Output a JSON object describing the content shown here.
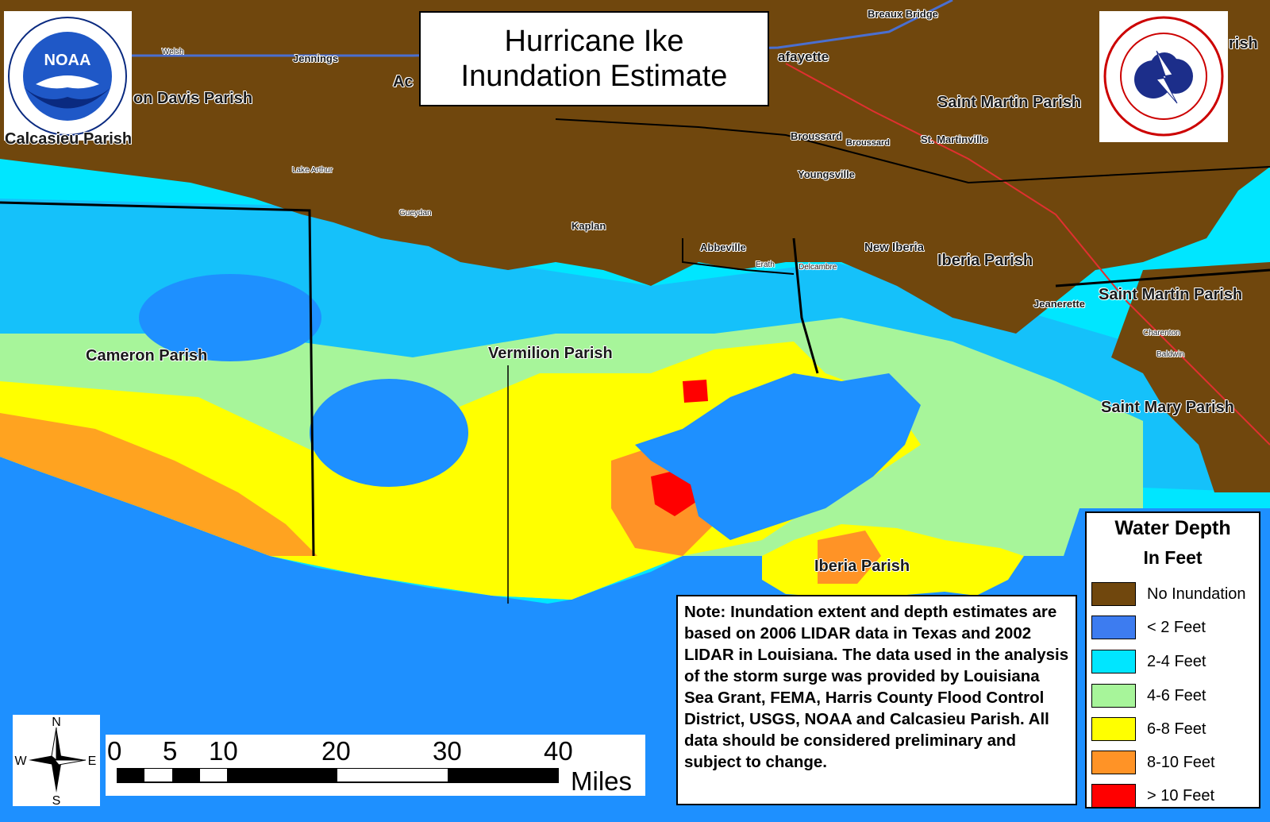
{
  "title": {
    "line1": "Hurricane Ike",
    "line2": "Inundation Estimate"
  },
  "logos": {
    "left": "NOAA",
    "right": "National Weather Service"
  },
  "places": {
    "parishes": [
      "Cameron Parish",
      "Vermilion Parish",
      "Iberia Parish",
      "Saint Martin Parish",
      "Saint Mary Parish",
      "Calcasieu Parish",
      "Jefferson Davis Parish",
      "Iberia Parish",
      "Saint Martin Parish",
      "rish"
    ],
    "towns": [
      "Lafayette",
      "Breaux Bridge",
      "Broussard",
      "St. Martinville",
      "Youngsville",
      "Kaplan",
      "Abbeville",
      "New Iberia",
      "Jeanerette",
      "Jennings",
      "Lake Arthur",
      "Gueydan",
      "Erath",
      "Delcambre",
      "Charenton",
      "Baldwin",
      "Welsh",
      "Broussard"
    ]
  },
  "note": "Note: Inundation extent and depth estimates  are based on 2006 LIDAR data in Texas and 2002 LIDAR in Louisiana. The data used in the analysis of the storm surge was provided by Louisiana Sea Grant, FEMA, Harris County Flood Control District, USGS, NOAA and Calcasieu Parish. All data should be considered preliminary and subject to change.",
  "legend": {
    "title": "Water Depth",
    "subtitle": "In Feet",
    "items": [
      {
        "label": "No Inundation",
        "color": "#70470d"
      },
      {
        "label": "< 2 Feet",
        "color": "#3d7cf0"
      },
      {
        "label": "2-4 Feet",
        "color": "#00e6ff"
      },
      {
        "label": "4-6 Feet",
        "color": "#a7f59a"
      },
      {
        "label": "6-8 Feet",
        "color": "#ffff00"
      },
      {
        "label": "8-10 Feet",
        "color": "#ff9326"
      },
      {
        "label": "> 10 Feet",
        "color": "#ff0000"
      }
    ]
  },
  "compass": {
    "n": "N",
    "s": "S",
    "e": "E",
    "w": "W"
  },
  "scale": {
    "ticks": [
      "0",
      "5",
      "10",
      "20",
      "30",
      "40"
    ],
    "unit": "Miles"
  },
  "colors": {
    "water": "#1e90ff",
    "land": "#70470d"
  }
}
